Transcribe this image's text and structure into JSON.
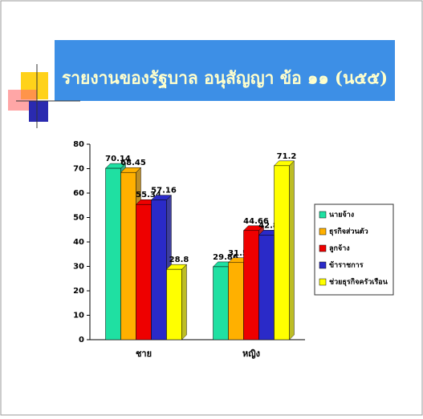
{
  "chart_data": {
    "type": "bar",
    "title": "รายงานของรัฐบาล อนุสัญญา ข้อ ๑๑ (น๕๕)",
    "categories": [
      "ชาย",
      "หญิง"
    ],
    "series": [
      {
        "name": "นายจ้าง",
        "color": "#1fe0a2",
        "values": [
          70.14,
          29.86
        ]
      },
      {
        "name": "ธุรกิจส่วนตัว",
        "color": "#ffb000",
        "values": [
          68.45,
          31.55
        ]
      },
      {
        "name": "ลูกจ้าง",
        "color": "#ee0000",
        "values": [
          55.34,
          44.66
        ]
      },
      {
        "name": "ข้าราชการ",
        "color": "#2a2ac8",
        "values": [
          57.16,
          42.84
        ]
      },
      {
        "name": "ช่วยธุรกิจครัวเรือน",
        "color": "#ffff00",
        "values": [
          28.8,
          71.2
        ]
      }
    ],
    "ylim": [
      0,
      80
    ],
    "yticks": [
      0,
      10,
      20,
      30,
      40,
      50,
      60,
      70,
      80
    ]
  }
}
